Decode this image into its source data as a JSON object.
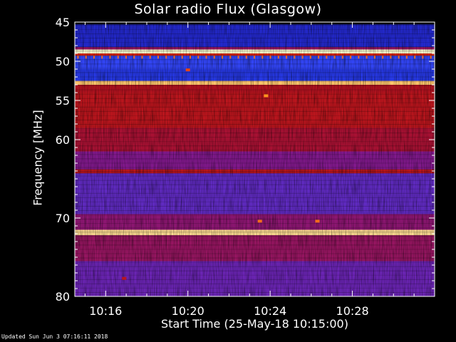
{
  "chart_data": {
    "type": "heatmap",
    "title": "Solar radio Flux (Glasgow)",
    "xlabel": "Start Time (25-May-18 10:15:00)",
    "ylabel": "Frequency [MHz]",
    "x_range_minutes_after_10_00": [
      14.5,
      32.0
    ],
    "y_range_mhz": [
      45,
      80
    ],
    "y_axis_direction": "increasing downward",
    "x_ticks": [
      {
        "value": 16,
        "label": "10:16"
      },
      {
        "value": 20,
        "label": "10:20"
      },
      {
        "value": 24,
        "label": "10:24"
      },
      {
        "value": 28,
        "label": "10:28"
      }
    ],
    "y_ticks": [
      {
        "value": 45,
        "label": "45"
      },
      {
        "value": 50,
        "label": "50"
      },
      {
        "value": 55,
        "label": "55"
      },
      {
        "value": 60,
        "label": "60"
      },
      {
        "value": 70,
        "label": "70"
      },
      {
        "value": 80,
        "label": "80"
      }
    ],
    "colormap": [
      "#000000",
      "#1a0090",
      "#2a4aff",
      "#7a1aa0",
      "#b01020",
      "#e02a10",
      "#ff9a20",
      "#ffffd0"
    ],
    "bands": [
      {
        "from": 45.3,
        "to": 48.2,
        "level": 0.22
      },
      {
        "from": 48.2,
        "to": 48.5,
        "level": 0.5
      },
      {
        "from": 48.5,
        "to": 49.0,
        "level": 1.0
      },
      {
        "from": 49.0,
        "to": 49.3,
        "level": 0.7
      },
      {
        "from": 49.3,
        "to": 51.0,
        "level": 0.3
      },
      {
        "from": 51.0,
        "to": 52.5,
        "level": 0.25
      },
      {
        "from": 52.5,
        "to": 53.0,
        "level": 0.92
      },
      {
        "from": 53.0,
        "to": 54.0,
        "level": 0.58
      },
      {
        "from": 54.0,
        "to": 58.5,
        "level": 0.6
      },
      {
        "from": 58.5,
        "to": 61.5,
        "level": 0.55
      },
      {
        "from": 61.5,
        "to": 63.8,
        "level": 0.45
      },
      {
        "from": 63.8,
        "to": 64.3,
        "level": 0.6
      },
      {
        "from": 64.3,
        "to": 69.5,
        "level": 0.38
      },
      {
        "from": 69.5,
        "to": 71.5,
        "level": 0.48
      },
      {
        "from": 71.5,
        "to": 72.2,
        "level": 0.95
      },
      {
        "from": 72.2,
        "to": 75.5,
        "level": 0.5
      },
      {
        "from": 75.5,
        "to": 80.0,
        "level": 0.4
      }
    ],
    "spots": [
      {
        "x": 20.0,
        "y": 51.1,
        "level": 0.75
      },
      {
        "x": 23.8,
        "y": 54.4,
        "level": 0.85
      },
      {
        "x": 23.5,
        "y": 70.4,
        "level": 0.8
      },
      {
        "x": 26.3,
        "y": 70.4,
        "level": 0.8
      },
      {
        "x": 16.9,
        "y": 77.7,
        "level": 0.6
      }
    ]
  },
  "footer": "Updated Sun Jun  3 07:16:11 2018"
}
